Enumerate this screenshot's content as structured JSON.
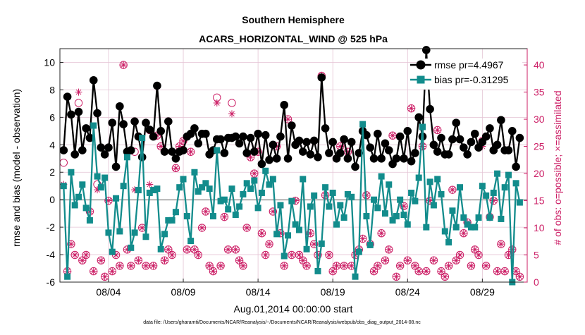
{
  "chart_data": {
    "type": "line",
    "title": "Southern Hemisphere",
    "subtitle": "ACARS_HORIZONTAL_WIND @ 525 hPa",
    "xlabel": "Aug.01,2014 00:00:00 start",
    "ylabel_left": "rmse and bias (model - observation)",
    "ylabel_right": "# of obs: o=possible; ×=assimilated",
    "footnote": "data file: /Users/gharamti/Documents/NCAR/Reanalysis/~/Documents/NCAR/Reanalysis/webpub/obs_diag_output_2014-08.nc",
    "x_tick_labels": [
      "08/04",
      "08/09",
      "08/14",
      "08/19",
      "08/24",
      "08/29"
    ],
    "x_tick_positions": [
      4,
      9,
      14,
      19,
      24,
      29
    ],
    "xlim": [
      0.75,
      32.0
    ],
    "ylim_left": [
      -6,
      11
    ],
    "left_ticks": [
      -6,
      -4,
      -2,
      0,
      2,
      4,
      6,
      8,
      10
    ],
    "ylim_right": [
      0,
      43
    ],
    "right_ticks": [
      0,
      5,
      10,
      15,
      20,
      25,
      30,
      35,
      40
    ],
    "grid": true,
    "legend_position": "top-right",
    "colors": {
      "rmse": "#000000",
      "bias": "#128c8c",
      "obs_count": "#cc1f66",
      "zero_line": "#b8b8b8",
      "grid": "#e4c3d4"
    },
    "series": [
      {
        "name": "rmse pr=4.4967",
        "marker": "filled-circle",
        "x": [
          1.0,
          1.25,
          1.5,
          1.75,
          2.0,
          2.25,
          2.5,
          2.75,
          3.0,
          3.25,
          3.5,
          3.75,
          4.0,
          4.25,
          4.5,
          4.75,
          5.0,
          5.25,
          5.5,
          5.75,
          6.0,
          6.25,
          6.5,
          6.75,
          7.0,
          7.25,
          7.5,
          7.75,
          8.0,
          8.25,
          8.5,
          8.75,
          9.0,
          9.25,
          9.5,
          9.75,
          10.0,
          10.25,
          10.5,
          10.75,
          11.0,
          11.25,
          11.5,
          11.75,
          12.0,
          12.25,
          12.5,
          12.75,
          13.0,
          13.25,
          13.5,
          13.75,
          14.0,
          14.25,
          14.5,
          14.75,
          15.0,
          15.25,
          15.5,
          15.75,
          16.0,
          16.25,
          16.5,
          16.75,
          17.0,
          17.25,
          17.5,
          17.75,
          18.0,
          18.25,
          18.5,
          18.75,
          19.0,
          19.25,
          19.5,
          19.75,
          20.0,
          20.25,
          20.5,
          20.75,
          21.0,
          21.25,
          21.5,
          21.75,
          22.0,
          22.25,
          22.5,
          22.75,
          23.0,
          23.25,
          23.5,
          23.75,
          24.0,
          24.25,
          24.5,
          24.75,
          25.0,
          25.25,
          25.5,
          25.75,
          26.0,
          26.25,
          26.5,
          26.75,
          27.0,
          27.25,
          27.5,
          27.75,
          28.0,
          28.25,
          28.5,
          28.75,
          29.0,
          29.25,
          29.5,
          29.75,
          30.0,
          30.25,
          30.5,
          30.75,
          31.0,
          31.25,
          31.5
        ],
        "y": [
          3.6,
          7.5,
          6.2,
          3.3,
          6.4,
          3.6,
          5.2,
          4.5,
          8.7,
          6.3,
          3.8,
          3.3,
          3.8,
          5.6,
          2.4,
          6.8,
          5.5,
          3.5,
          3.6,
          5.7,
          4.6,
          3.1,
          5.6,
          5.1,
          4.6,
          8.3,
          5.0,
          3.5,
          5.7,
          3.5,
          3.0,
          3.5,
          3.6,
          4.6,
          4.8,
          5.2,
          4.1,
          4.8,
          4.8,
          3.3,
          3.6,
          4.4,
          4.4,
          3.4,
          4.5,
          4.5,
          4.6,
          4.1,
          4.6,
          3.4,
          4.5,
          3.5,
          4.8,
          2.6,
          4.7,
          2.9,
          4.0,
          3.0,
          4.6,
          6.9,
          3.0,
          5.4,
          4.0,
          4.3,
          3.5,
          4.2,
          3.3,
          4.3,
          3.1,
          8.9,
          5.2,
          3.4,
          4.2,
          3.0,
          3.4,
          4.4,
          3.0,
          4.2,
          2.4,
          3.4,
          5.0,
          4.7,
          3.8,
          3.0,
          4.8,
          3.0,
          4.1,
          3.6,
          2.6,
          3.0,
          4.6,
          3.0,
          5.0,
          2.8,
          3.4,
          6.0,
          4.6,
          10.9,
          6.6,
          4.0,
          3.5,
          4.5,
          3.3,
          3.3,
          4.4,
          5.6,
          4.4,
          3.8,
          3.3,
          4.2,
          4.8,
          3.8,
          4.2,
          4.6,
          5.2,
          3.6,
          4.0,
          5.8,
          3.6,
          3.6,
          5.0,
          2.4,
          4.5
        ]
      },
      {
        "name": "bias pr=-0.31295",
        "marker": "filled-square",
        "x": [
          1.0,
          1.25,
          1.5,
          1.75,
          2.0,
          2.25,
          2.5,
          2.75,
          3.0,
          3.25,
          3.5,
          3.75,
          4.0,
          4.25,
          4.5,
          4.75,
          5.0,
          5.25,
          5.5,
          5.75,
          6.0,
          6.25,
          6.5,
          6.75,
          7.0,
          7.25,
          7.5,
          7.75,
          8.0,
          8.25,
          8.5,
          8.75,
          9.0,
          9.25,
          9.5,
          9.75,
          10.0,
          10.25,
          10.5,
          10.75,
          11.0,
          11.25,
          11.5,
          11.75,
          12.0,
          12.25,
          12.5,
          12.75,
          13.0,
          13.25,
          13.5,
          13.75,
          14.0,
          14.25,
          14.5,
          14.75,
          15.0,
          15.25,
          15.5,
          15.75,
          16.0,
          16.25,
          16.5,
          16.75,
          17.0,
          17.25,
          17.5,
          17.75,
          18.0,
          18.25,
          18.5,
          18.75,
          19.0,
          19.25,
          19.5,
          19.75,
          20.0,
          20.25,
          20.5,
          20.75,
          21.0,
          21.25,
          21.5,
          21.75,
          22.0,
          22.25,
          22.5,
          22.75,
          23.0,
          23.25,
          23.5,
          23.75,
          24.0,
          24.25,
          24.5,
          24.75,
          25.0,
          25.25,
          25.5,
          25.75,
          26.0,
          26.25,
          26.5,
          26.75,
          27.0,
          27.25,
          27.5,
          27.75,
          28.0,
          28.25,
          28.5,
          28.75,
          29.0,
          29.25,
          29.5,
          29.75,
          30.0,
          30.25,
          30.5,
          30.75,
          31.0,
          31.25,
          31.5
        ],
        "y": [
          1.0,
          -5.6,
          2.0,
          -0.4,
          0.2,
          1.1,
          -0.6,
          -1.5,
          5.4,
          1.7,
          0.9,
          1.6,
          -2.4,
          -3.8,
          0.1,
          -2.3,
          1.0,
          3.1,
          -3.5,
          -2.4,
          0.7,
          4.5,
          -2.7,
          0.5,
          0.7,
          0.8,
          -3.6,
          -2.5,
          -1.5,
          -1.5,
          -0.9,
          0.9,
          1.5,
          -1.2,
          -3.0,
          2.0,
          0.6,
          0.9,
          1.2,
          0.8,
          -1.2,
          3.6,
          -0.1,
          0.0,
          -0.7,
          0.8,
          -1.1,
          -0.5,
          0.4,
          1.2,
          0.8,
          1.4,
          -0.6,
          0.5,
          2.1,
          1.1,
          1.5,
          -2.5,
          -0.4,
          -4.1,
          -2.6,
          -0.1,
          -1.8,
          -2.2,
          1.5,
          -3.6,
          -0.5,
          0.3,
          -5.2,
          -3.2,
          0.9,
          -0.5,
          0.5,
          -1.8,
          -0.4,
          -1.3,
          0.4,
          0.2,
          -5.6,
          -3.8,
          5.5,
          -1.2,
          -3.3,
          0.0,
          -0.6,
          1.7,
          -1.0,
          1.1,
          -1.5,
          -1.2,
          0.0,
          -1.1,
          -1.8,
          0.5,
          -0.1,
          1.6,
          5.3,
          -2.0,
          1.3,
          -0.4,
          1.5,
          0.4,
          -2.3,
          -3.1,
          -0.8,
          -2.0,
          0.9,
          -1.3,
          -1.8,
          -2.0,
          -2.0,
          -1.3,
          1.0,
          0.3,
          -1.3,
          0.5,
          1.9,
          -1.4,
          0.9,
          1.8,
          -6.0,
          1.2,
          -0.2
        ]
      },
      {
        "name": "obs possible",
        "marker": "circle",
        "axis": "right",
        "x": [
          1.0,
          1.25,
          1.5,
          1.75,
          2.0,
          2.25,
          2.5,
          2.75,
          3.0,
          3.25,
          3.5,
          3.75,
          4.0,
          4.25,
          4.5,
          4.75,
          5.0,
          5.25,
          5.5,
          5.75,
          6.0,
          6.25,
          6.5,
          6.75,
          7.0,
          7.25,
          7.5,
          7.75,
          8.0,
          8.25,
          8.5,
          8.75,
          9.0,
          9.25,
          9.5,
          9.75,
          10.0,
          10.25,
          10.5,
          10.75,
          11.0,
          11.25,
          11.5,
          11.75,
          12.0,
          12.25,
          12.5,
          12.75,
          13.0,
          13.25,
          13.5,
          13.75,
          14.0,
          14.25,
          14.5,
          14.75,
          15.0,
          15.25,
          15.5,
          15.75,
          16.0,
          16.25,
          16.5,
          16.75,
          17.0,
          17.25,
          17.5,
          17.75,
          18.0,
          18.25,
          18.5,
          18.75,
          19.0,
          19.25,
          19.5,
          19.75,
          20.0,
          20.25,
          20.5,
          20.75,
          21.0,
          21.25,
          21.5,
          21.75,
          22.0,
          22.25,
          22.5,
          22.75,
          23.0,
          23.25,
          23.5,
          23.75,
          24.0,
          24.25,
          24.5,
          24.75,
          25.0,
          25.25,
          25.5,
          25.75,
          26.0,
          26.25,
          26.5,
          26.75,
          27.0,
          27.25,
          27.5,
          27.75,
          28.0,
          28.25,
          28.5,
          28.75,
          29.0,
          29.25,
          29.5,
          29.75,
          30.0,
          30.25,
          30.5,
          30.75,
          31.0,
          31.25,
          31.5
        ],
        "y": [
          22,
          2,
          7,
          5,
          33,
          4,
          5,
          13,
          2,
          18,
          4,
          1,
          15,
          2,
          5,
          3,
          40,
          6,
          3,
          24,
          4,
          10,
          3,
          28,
          3,
          27,
          25,
          4,
          6,
          5,
          21,
          25,
          26,
          6,
          24,
          6,
          5,
          10,
          13,
          3,
          2,
          34,
          3,
          12,
          6,
          33,
          6,
          4,
          3,
          10,
          23,
          20,
          24,
          9,
          5,
          7,
          13,
          25,
          9,
          3,
          30,
          5,
          15,
          5,
          4,
          3,
          9,
          7,
          5,
          38,
          16,
          5,
          2,
          3,
          25,
          3,
          24,
          3,
          5,
          6,
          8,
          16,
          7,
          2,
          3,
          9,
          4,
          6,
          27,
          1,
          3,
          14,
          4,
          32,
          3,
          2,
          25,
          2,
          15,
          4,
          28,
          2,
          1,
          3,
          17,
          4,
          5,
          9,
          11,
          3,
          6,
          5,
          26,
          3,
          12,
          15,
          2,
          7,
          2,
          5,
          6,
          2,
          1
        ]
      },
      {
        "name": "obs assimilated",
        "marker": "asterisk",
        "axis": "right",
        "x": [
          1.0,
          1.25,
          1.5,
          1.75,
          2.0,
          2.25,
          2.5,
          2.75,
          3.0,
          3.25,
          3.5,
          3.75,
          4.0,
          4.25,
          4.5,
          4.75,
          5.0,
          5.25,
          5.5,
          5.75,
          6.0,
          6.25,
          6.5,
          6.75,
          7.0,
          7.25,
          7.5,
          7.75,
          8.0,
          8.25,
          8.5,
          8.75,
          9.0,
          9.25,
          9.5,
          9.75,
          10.0,
          10.25,
          10.5,
          10.75,
          11.0,
          11.25,
          11.5,
          11.75,
          12.0,
          12.25,
          12.5,
          12.75,
          13.0,
          13.25,
          13.5,
          13.75,
          14.0,
          14.25,
          14.5,
          14.75,
          15.0,
          15.25,
          15.5,
          15.75,
          16.0,
          16.25,
          16.5,
          16.75,
          17.0,
          17.25,
          17.5,
          17.75,
          18.0,
          18.25,
          18.5,
          18.75,
          19.0,
          19.25,
          19.5,
          19.75,
          20.0,
          20.25,
          20.5,
          20.75,
          21.0,
          21.25,
          21.5,
          21.75,
          22.0,
          22.25,
          22.5,
          22.75,
          23.0,
          23.25,
          23.5,
          23.75,
          24.0,
          24.25,
          24.5,
          24.75,
          25.0,
          25.25,
          25.5,
          25.75,
          26.0,
          26.25,
          26.5,
          26.75,
          27.0,
          27.25,
          27.5,
          27.75,
          28.0,
          28.25,
          28.5,
          28.75,
          29.0,
          29.25,
          29.5,
          29.75,
          30.0,
          30.25,
          30.5,
          30.75,
          31.0,
          31.25,
          31.5
        ],
        "y": [
          18,
          2,
          7,
          5,
          35,
          4,
          5,
          13,
          2,
          17,
          4,
          1,
          15,
          2,
          5,
          3,
          40,
          6,
          3,
          17,
          4,
          10,
          3,
          18,
          3,
          27,
          25,
          4,
          6,
          5,
          21,
          25,
          26,
          6,
          24,
          6,
          5,
          10,
          13,
          3,
          2,
          33,
          3,
          12,
          6,
          31,
          6,
          4,
          3,
          10,
          23,
          20,
          24,
          9,
          5,
          7,
          13,
          25,
          9,
          3,
          30,
          5,
          15,
          5,
          4,
          3,
          9,
          7,
          5,
          38,
          16,
          5,
          2,
          3,
          25,
          3,
          24,
          3,
          5,
          6,
          8,
          16,
          7,
          2,
          3,
          9,
          4,
          6,
          27,
          1,
          3,
          14,
          4,
          32,
          3,
          2,
          25,
          2,
          15,
          4,
          28,
          2,
          1,
          3,
          17,
          4,
          5,
          9,
          11,
          3,
          6,
          5,
          25,
          3,
          12,
          15,
          2,
          7,
          2,
          5,
          6,
          2,
          1
        ]
      }
    ]
  }
}
